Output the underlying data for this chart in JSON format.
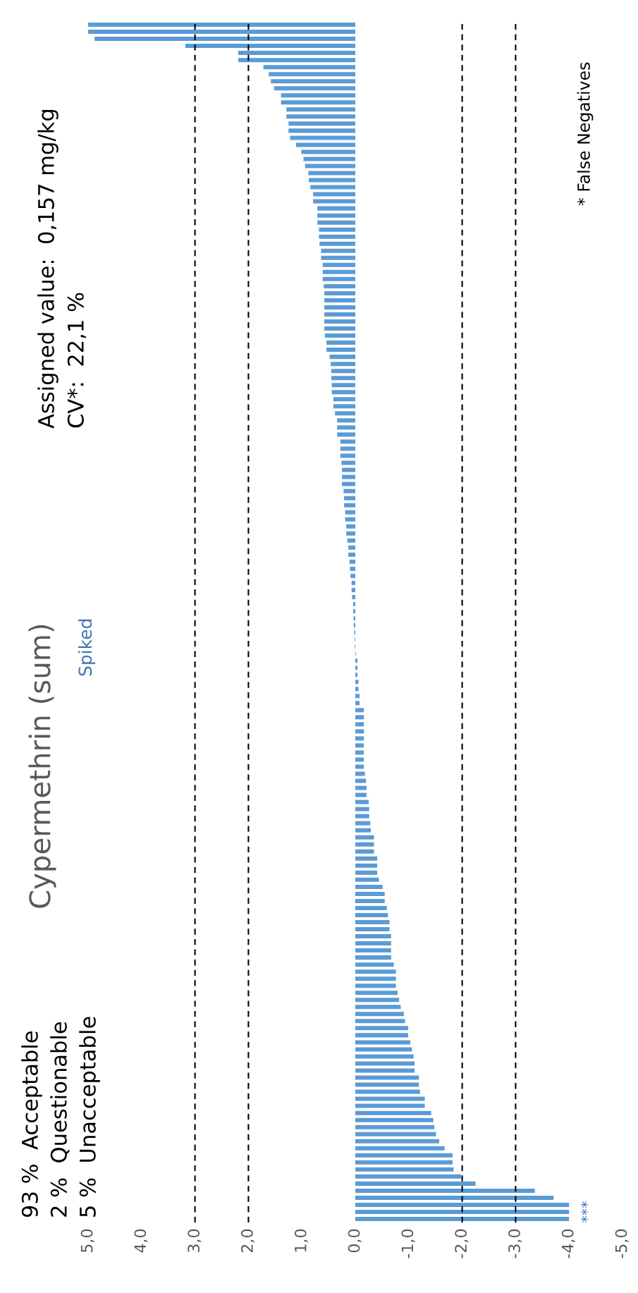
{
  "chart_data": {
    "type": "bar",
    "orientation": "horizontal",
    "title": "Cypermethrin (sum)",
    "subtitle": "Spiked",
    "categories": [
      null,
      null,
      null,
      null,
      null,
      null,
      null,
      null,
      null,
      null,
      null,
      null,
      null,
      null,
      null,
      null,
      null,
      null,
      null,
      null,
      null,
      null,
      null,
      null,
      null,
      null,
      null,
      null,
      null,
      null,
      null,
      null,
      null,
      null,
      null,
      null,
      null,
      null,
      null,
      null,
      null,
      null,
      null,
      null,
      null,
      null,
      null,
      null,
      null,
      null,
      null,
      null,
      null,
      null,
      null,
      null,
      null,
      null,
      null,
      null,
      null,
      null,
      null,
      null,
      null,
      null,
      null,
      null,
      null,
      null,
      null,
      null,
      null,
      null,
      null,
      null,
      null,
      null,
      null,
      null,
      null,
      null,
      null,
      null,
      null,
      null,
      null,
      null,
      null,
      null,
      null,
      null,
      null,
      null,
      null,
      null,
      null,
      null,
      null,
      null,
      null,
      null,
      null,
      null,
      null,
      null,
      null,
      null,
      null,
      null,
      null,
      null,
      null,
      null,
      null,
      null,
      null,
      null,
      null,
      null,
      null,
      null,
      null,
      null,
      null,
      null,
      null,
      null,
      null,
      null,
      null,
      null,
      null,
      null,
      null,
      null,
      null,
      null,
      null,
      null,
      null,
      null,
      null,
      null,
      null,
      null,
      null,
      null,
      null,
      null,
      null,
      null,
      null,
      null,
      null,
      null,
      null,
      null,
      null,
      null,
      null,
      null,
      null,
      null,
      null,
      null,
      null,
      null,
      null,
      null
    ],
    "values": [
      5.0,
      5.0,
      4.88,
      3.18,
      2.19,
      2.19,
      1.72,
      1.62,
      1.58,
      1.52,
      1.39,
      1.39,
      1.29,
      1.29,
      1.25,
      1.25,
      1.22,
      1.11,
      1.01,
      0.97,
      0.94,
      0.88,
      0.87,
      0.84,
      0.79,
      0.79,
      0.71,
      0.71,
      0.71,
      0.68,
      0.68,
      0.67,
      0.64,
      0.64,
      0.61,
      0.61,
      0.61,
      0.59,
      0.58,
      0.58,
      0.58,
      0.58,
      0.58,
      0.58,
      0.57,
      0.54,
      0.54,
      0.48,
      0.46,
      0.45,
      0.45,
      0.44,
      0.44,
      0.41,
      0.41,
      0.38,
      0.34,
      0.34,
      0.34,
      0.28,
      0.28,
      0.28,
      0.26,
      0.25,
      0.25,
      0.25,
      0.22,
      0.21,
      0.21,
      0.19,
      0.19,
      0.17,
      0.17,
      0.15,
      0.13,
      0.13,
      0.11,
      0.1,
      0.09,
      0.07,
      0.07,
      0.06,
      0.04,
      0.04,
      0.03,
      0.03,
      0.02,
      0.01,
      0.01,
      -0.01,
      -0.04,
      -0.04,
      -0.04,
      -0.06,
      -0.06,
      -0.08,
      -0.08,
      -0.16,
      -0.16,
      -0.16,
      -0.16,
      -0.16,
      -0.16,
      -0.16,
      -0.16,
      -0.16,
      -0.18,
      -0.2,
      -0.21,
      -0.21,
      -0.25,
      -0.26,
      -0.26,
      -0.28,
      -0.29,
      -0.35,
      -0.35,
      -0.35,
      -0.41,
      -0.41,
      -0.41,
      -0.44,
      -0.51,
      -0.55,
      -0.55,
      -0.59,
      -0.61,
      -0.64,
      -0.64,
      -0.67,
      -0.67,
      -0.67,
      -0.67,
      -0.72,
      -0.76,
      -0.76,
      -0.76,
      -0.79,
      -0.82,
      -0.85,
      -0.91,
      -0.93,
      -0.99,
      -0.99,
      -1.03,
      -1.06,
      -1.09,
      -1.11,
      -1.11,
      -1.19,
      -1.19,
      -1.21,
      -1.3,
      -1.3,
      -1.42,
      -1.46,
      -1.48,
      -1.51,
      -1.57,
      -1.67,
      -1.82,
      -1.82,
      -1.84,
      -1.98,
      -2.25,
      -3.36,
      -3.71,
      -4.0,
      -4.0,
      -4.0
    ],
    "color": "#5b9bd5",
    "xlim": [
      5,
      -5
    ],
    "xticks": [
      {
        "value": 5,
        "label": "5,0"
      },
      {
        "value": 4,
        "label": "4,0"
      },
      {
        "value": 3,
        "label": "3,0"
      },
      {
        "value": 2,
        "label": "2,0"
      },
      {
        "value": 1,
        "label": "1,0"
      },
      {
        "value": 0,
        "label": "0,0"
      },
      {
        "value": -1,
        "label": "-1,0"
      },
      {
        "value": -2,
        "label": "-2,0"
      },
      {
        "value": -3,
        "label": "-3,0"
      },
      {
        "value": -4,
        "label": "-4,0"
      },
      {
        "value": -5,
        "label": "-5,0"
      }
    ],
    "tick_labels": "x",
    "grid": false,
    "ref_lines": [
      {
        "axis": "x",
        "value": 3,
        "color": "#000000",
        "line_style": "dashed"
      },
      {
        "axis": "x",
        "value": 2,
        "color": "#000000",
        "line_style": "dashed"
      },
      {
        "axis": "x",
        "value": -2,
        "color": "#000000",
        "line_style": "dashed"
      },
      {
        "axis": "x",
        "value": -3,
        "color": "#000000",
        "line_style": "dashed"
      }
    ],
    "annotations": [
      "93 %  Acceptable",
      "2 %  Questionable",
      "5 %  Unacceptable",
      "Assigned value:  0,157 mg/kg",
      "CV*:  22,1 %",
      "* False Negatives",
      {
        "text": "***",
        "x": -4.0
      }
    ]
  }
}
